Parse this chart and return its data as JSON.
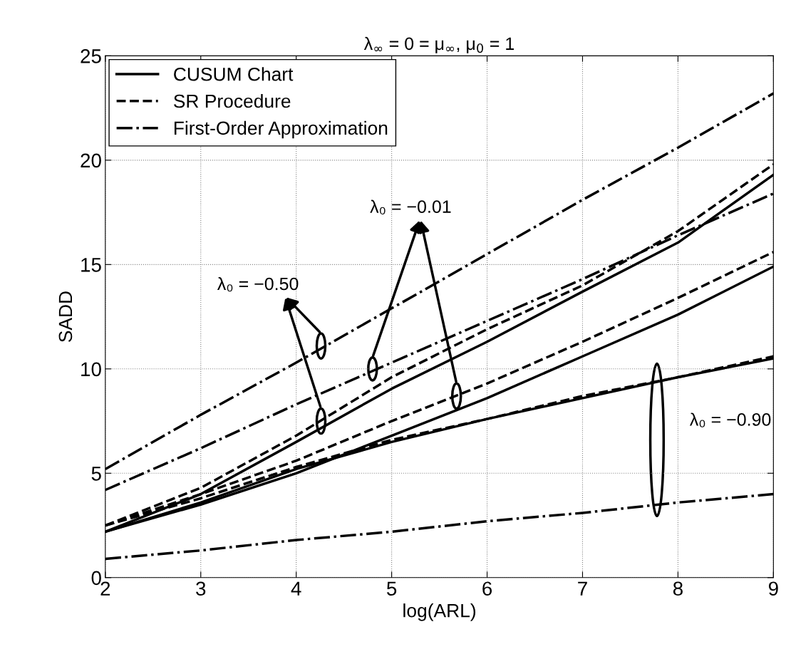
{
  "chart_data": {
    "type": "line",
    "title": "λ$_{∞}$ = 0 = μ$_{∞}$, μ$_{0}$ = 1",
    "xlabel": "log(ARL)",
    "ylabel": "SADD",
    "x": [
      2,
      3,
      4,
      5,
      6,
      7,
      8,
      9
    ],
    "series": [
      {
        "name": "CUSUM Chart",
        "color": "#000000",
        "line_style": "solid",
        "values": [
          2.2,
          4.0,
          6.5,
          9.05,
          11.3,
          13.7,
          16.05,
          19.3
        ]
      },
      {
        "color": "#000000",
        "line_style": "solid",
        "values": [
          2.2,
          3.5,
          5.0,
          6.8,
          8.6,
          10.6,
          12.6,
          14.9
        ]
      },
      {
        "color": "#000000",
        "line_style": "solid",
        "values": [
          2.2,
          3.6,
          5.2,
          6.5,
          7.6,
          8.6,
          9.6,
          10.5
        ]
      },
      {
        "name": "SR Procedure",
        "color": "#000000",
        "line_style": "dashed",
        "values": [
          2.5,
          4.3,
          6.8,
          9.6,
          11.9,
          14.0,
          16.6,
          19.8
        ]
      },
      {
        "color": "#000000",
        "line_style": "dashed",
        "values": [
          2.5,
          4.0,
          5.6,
          7.5,
          9.3,
          11.3,
          13.4,
          15.6
        ]
      },
      {
        "color": "#000000",
        "line_style": "dashed",
        "values": [
          2.5,
          3.8,
          5.3,
          6.6,
          7.6,
          8.7,
          9.6,
          10.6
        ]
      },
      {
        "name": "First-Order Approximation",
        "color": "#000000",
        "line_style": "dashdot",
        "values": [
          5.2,
          7.8,
          10.3,
          12.9,
          15.5,
          18.1,
          20.6,
          23.2
        ]
      },
      {
        "color": "#000000",
        "line_style": "dashdot",
        "values": [
          4.2,
          6.2,
          8.3,
          10.3,
          12.3,
          14.3,
          16.4,
          18.4
        ]
      },
      {
        "color": "#000000",
        "line_style": "dashdot",
        "values": [
          0.9,
          1.3,
          1.8,
          2.2,
          2.7,
          3.1,
          3.6,
          4.0
        ]
      }
    ],
    "annotations": [
      "λ₀ = −0.50",
      "λ₀ = −0.01",
      "λ₀ = −0.90"
    ],
    "xlim": [
      2,
      9
    ],
    "ylim": [
      0,
      25
    ],
    "xticks": [
      2,
      3,
      4,
      5,
      6,
      7,
      8,
      9
    ],
    "yticks": [
      0,
      5,
      10,
      15,
      20,
      25
    ],
    "grid": true,
    "legend": "top left",
    "marker": "none"
  }
}
